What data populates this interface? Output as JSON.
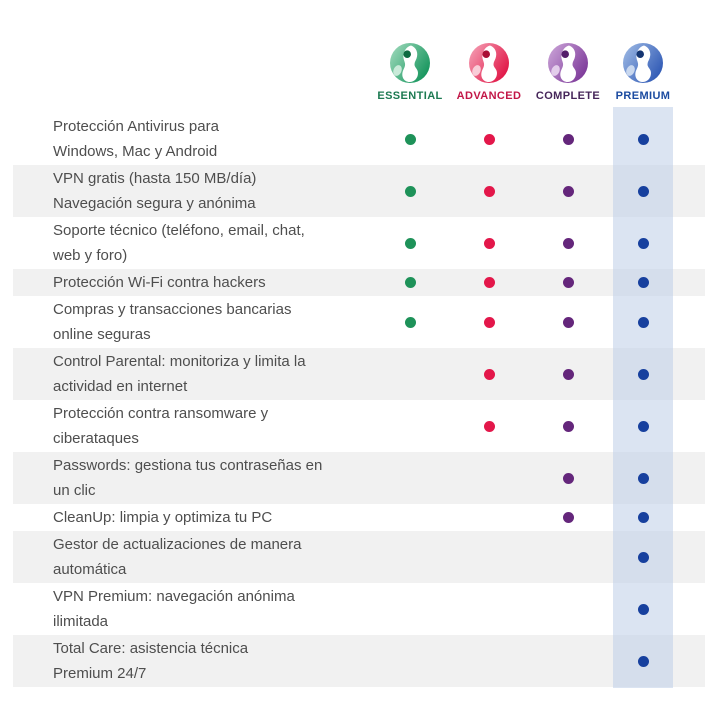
{
  "tiers": [
    {
      "name": "ESSENTIAL",
      "label_color": "#1d7a52",
      "dot_color": "#1e9259",
      "logo_light": "#9ed9bb",
      "logo_dark": "#12935a",
      "logo_ear": "#0d6b41",
      "logo_paw": "#c9ead9"
    },
    {
      "name": "ADVANCED",
      "label_color": "#c21747",
      "dot_color": "#e3174a",
      "logo_light": "#f5a0b5",
      "logo_dark": "#e01243",
      "logo_ear": "#a90f35",
      "logo_paw": "#f9cdd8"
    },
    {
      "name": "COMPLETE",
      "label_color": "#46265a",
      "dot_color": "#64267b",
      "logo_light": "#cba4d8",
      "logo_dark": "#7b3798",
      "logo_ear": "#551d6b",
      "logo_paw": "#e3cdeb"
    },
    {
      "name": "PREMIUM",
      "label_color": "#1b4ba0",
      "dot_color": "#17409e",
      "logo_light": "#9db9e4",
      "logo_dark": "#2d57b4",
      "logo_ear": "#143572",
      "logo_paw": "#c9d8ef"
    }
  ],
  "highlight": {
    "column": "PREMIUM",
    "color": "rgba(190,206,231,0.55)"
  },
  "row_colors": {
    "default": "#ffffff",
    "alternate": "#f1f1f1",
    "text": "#4e4e4e"
  },
  "rows": [
    {
      "label": [
        "Protección Antivirus para",
        "Windows, Mac y Android"
      ],
      "included": [
        true,
        true,
        true,
        true
      ]
    },
    {
      "label": [
        "VPN gratis (hasta 150 MB/día)",
        "Navegación segura y anónima"
      ],
      "included": [
        true,
        true,
        true,
        true
      ]
    },
    {
      "label": [
        "Soporte técnico (teléfono, email, chat,",
        "web y foro)"
      ],
      "included": [
        true,
        true,
        true,
        true
      ]
    },
    {
      "label": [
        "Protección Wi-Fi contra hackers"
      ],
      "included": [
        true,
        true,
        true,
        true
      ]
    },
    {
      "label": [
        "Compras y transacciones bancarias",
        "online seguras"
      ],
      "included": [
        true,
        true,
        true,
        true
      ]
    },
    {
      "label": [
        "Control Parental: monitoriza y limita la",
        "actividad en internet"
      ],
      "included": [
        false,
        true,
        true,
        true
      ]
    },
    {
      "label": [
        "Protección contra ransomware y",
        "ciberataques"
      ],
      "included": [
        false,
        true,
        true,
        true
      ]
    },
    {
      "label": [
        "Passwords: gestiona tus contraseñas en",
        "un clic"
      ],
      "included": [
        false,
        false,
        true,
        true
      ]
    },
    {
      "label": [
        "CleanUp: limpia y optimiza tu PC"
      ],
      "included": [
        false,
        false,
        true,
        true
      ]
    },
    {
      "label": [
        "Gestor de actualizaciones de manera",
        "automática"
      ],
      "included": [
        false,
        false,
        false,
        true
      ]
    },
    {
      "label": [
        "VPN Premium: navegación anónima",
        "ilimitada"
      ],
      "included": [
        false,
        false,
        false,
        true
      ]
    },
    {
      "label": [
        "Total Care: asistencia técnica",
        "Premium 24/7"
      ],
      "included": [
        false,
        false,
        false,
        true
      ]
    }
  ]
}
